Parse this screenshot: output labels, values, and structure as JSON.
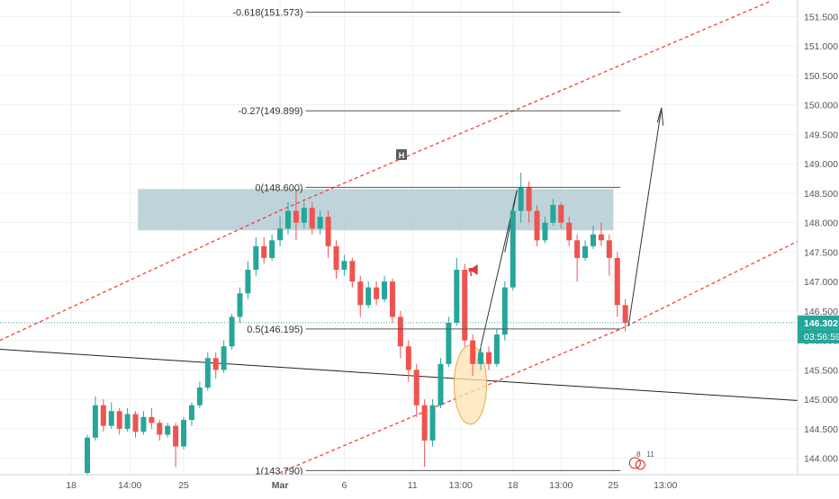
{
  "chart_data": {
    "type": "candlestick",
    "title": "",
    "xlabel": "",
    "ylabel": "",
    "ylim": [
      143.72,
      151.78
    ],
    "grid": true,
    "legend": "none",
    "x_ticks": [
      {
        "label": "18",
        "index": -2
      },
      {
        "label": "14:00",
        "index": 5.3
      },
      {
        "label": "25",
        "index": 12
      },
      {
        "label": "Mar",
        "index": 24
      },
      {
        "label": "6",
        "index": 32
      },
      {
        "label": "11",
        "index": 40.5
      },
      {
        "label": "13:00",
        "index": 46.5
      },
      {
        "label": "18",
        "index": 53
      },
      {
        "label": "13:00",
        "index": 59
      },
      {
        "label": "25",
        "index": 65.5
      },
      {
        "label": "13:00",
        "index": 72
      }
    ],
    "y_ticks": [
      "151.500",
      "151.000",
      "150.500",
      "150.000",
      "149.500",
      "149.000",
      "148.500",
      "148.000",
      "147.500",
      "147.000",
      "146.500",
      "146.000",
      "145.500",
      "145.000",
      "144.500",
      "144.000"
    ],
    "candles": [
      [
        143.75,
        144.35,
        143.7,
        144.4
      ],
      [
        144.35,
        144.9,
        144.3,
        145.05
      ],
      [
        144.9,
        144.55,
        144.45,
        145.0
      ],
      [
        144.55,
        144.8,
        144.5,
        144.95
      ],
      [
        144.8,
        144.5,
        144.4,
        144.85
      ],
      [
        144.5,
        144.75,
        144.45,
        144.85
      ],
      [
        144.75,
        144.45,
        144.35,
        144.8
      ],
      [
        144.45,
        144.7,
        144.4,
        144.8
      ],
      [
        144.7,
        144.6,
        144.5,
        144.85
      ],
      [
        144.6,
        144.4,
        144.3,
        144.65
      ],
      [
        144.4,
        144.55,
        144.35,
        144.6
      ],
      [
        144.55,
        144.2,
        143.85,
        144.6
      ],
      [
        144.2,
        144.65,
        144.15,
        144.7
      ],
      [
        144.65,
        144.9,
        144.55,
        144.95
      ],
      [
        144.9,
        145.2,
        144.85,
        145.3
      ],
      [
        145.2,
        145.7,
        145.15,
        145.8
      ],
      [
        145.7,
        145.5,
        145.35,
        145.8
      ],
      [
        145.5,
        145.9,
        145.45,
        146.0
      ],
      [
        145.9,
        146.4,
        145.85,
        146.45
      ],
      [
        146.4,
        146.8,
        146.3,
        146.9
      ],
      [
        146.8,
        147.2,
        146.7,
        147.35
      ],
      [
        147.2,
        147.6,
        147.1,
        147.75
      ],
      [
        147.6,
        147.4,
        147.3,
        147.75
      ],
      [
        147.4,
        147.7,
        147.35,
        147.8
      ],
      [
        147.7,
        147.9,
        147.6,
        148.1
      ],
      [
        147.9,
        148.2,
        147.8,
        148.35
      ],
      [
        148.2,
        148.0,
        147.7,
        148.55
      ],
      [
        148.0,
        148.25,
        147.9,
        148.35
      ],
      [
        148.25,
        147.9,
        147.8,
        148.35
      ],
      [
        147.9,
        148.1,
        147.8,
        148.2
      ],
      [
        148.1,
        147.6,
        147.4,
        148.2
      ],
      [
        147.6,
        147.2,
        147.05,
        147.7
      ],
      [
        147.2,
        147.35,
        147.1,
        147.45
      ],
      [
        147.35,
        147.0,
        146.9,
        147.4
      ],
      [
        147.0,
        146.6,
        146.4,
        147.1
      ],
      [
        146.6,
        146.9,
        146.55,
        147.0
      ],
      [
        146.9,
        146.7,
        146.6,
        147.0
      ],
      [
        146.7,
        147.0,
        146.65,
        147.1
      ],
      [
        147.0,
        146.4,
        146.3,
        147.05
      ],
      [
        146.4,
        145.9,
        145.7,
        146.5
      ],
      [
        145.9,
        145.5,
        145.3,
        146.0
      ],
      [
        145.5,
        144.9,
        144.7,
        145.6
      ],
      [
        144.9,
        144.3,
        143.85,
        145.0
      ],
      [
        144.3,
        144.9,
        144.2,
        145.0
      ],
      [
        144.9,
        145.6,
        144.85,
        145.7
      ],
      [
        145.6,
        146.3,
        145.55,
        146.4
      ],
      [
        146.3,
        147.2,
        146.25,
        147.4
      ],
      [
        147.2,
        146.0,
        145.9,
        147.3
      ],
      [
        146.0,
        145.6,
        145.4,
        146.1
      ],
      [
        145.6,
        145.8,
        145.5,
        145.9
      ],
      [
        145.8,
        145.6,
        145.5,
        145.9
      ],
      [
        145.6,
        146.1,
        145.55,
        146.2
      ],
      [
        146.1,
        146.9,
        146.0,
        147.0
      ],
      [
        146.9,
        148.2,
        146.85,
        148.3
      ],
      [
        148.2,
        148.6,
        148.0,
        148.85
      ],
      [
        148.6,
        148.2,
        148.0,
        148.7
      ],
      [
        148.2,
        147.7,
        147.6,
        148.3
      ],
      [
        147.7,
        148.0,
        147.65,
        148.1
      ],
      [
        148.0,
        148.3,
        147.95,
        148.4
      ],
      [
        148.3,
        148.0,
        147.9,
        148.35
      ],
      [
        148.0,
        147.7,
        147.6,
        148.1
      ],
      [
        147.7,
        147.4,
        147.0,
        147.8
      ],
      [
        147.4,
        147.6,
        147.35,
        147.7
      ],
      [
        147.6,
        147.8,
        147.55,
        147.95
      ],
      [
        147.8,
        147.7,
        147.6,
        148.0
      ],
      [
        147.7,
        147.4,
        147.1,
        147.8
      ],
      [
        147.4,
        146.6,
        146.4,
        147.5
      ],
      [
        146.6,
        146.3,
        146.15,
        146.7
      ]
    ],
    "candle_colors": {
      "up": "#26a69a",
      "down": "#ef5350"
    },
    "fib_levels": [
      {
        "label": "-0.618(151.573)",
        "value": 151.573
      },
      {
        "label": "-0.27(149.899)",
        "value": 149.899
      },
      {
        "label": "0(148.600)",
        "value": 148.6
      },
      {
        "label": "0.5(146.195)",
        "value": 146.195
      },
      {
        "label": "1(143.790)",
        "value": 143.79
      }
    ],
    "resistance_zone": {
      "low": 147.87,
      "high": 148.57,
      "color": "#b3cdd3"
    },
    "current_price": {
      "value": "146.302",
      "countdown": "03:56:59",
      "color": "#26a69a"
    },
    "annotations": {
      "event_marker": "H",
      "bottom_marker_values": [
        "8",
        "11"
      ]
    },
    "colors": {
      "channel": "#f44336",
      "trendline": "#222222",
      "fib": "#555555",
      "ellipse_fill": "#fde3b0",
      "ellipse_stroke": "#e8a64a"
    }
  }
}
